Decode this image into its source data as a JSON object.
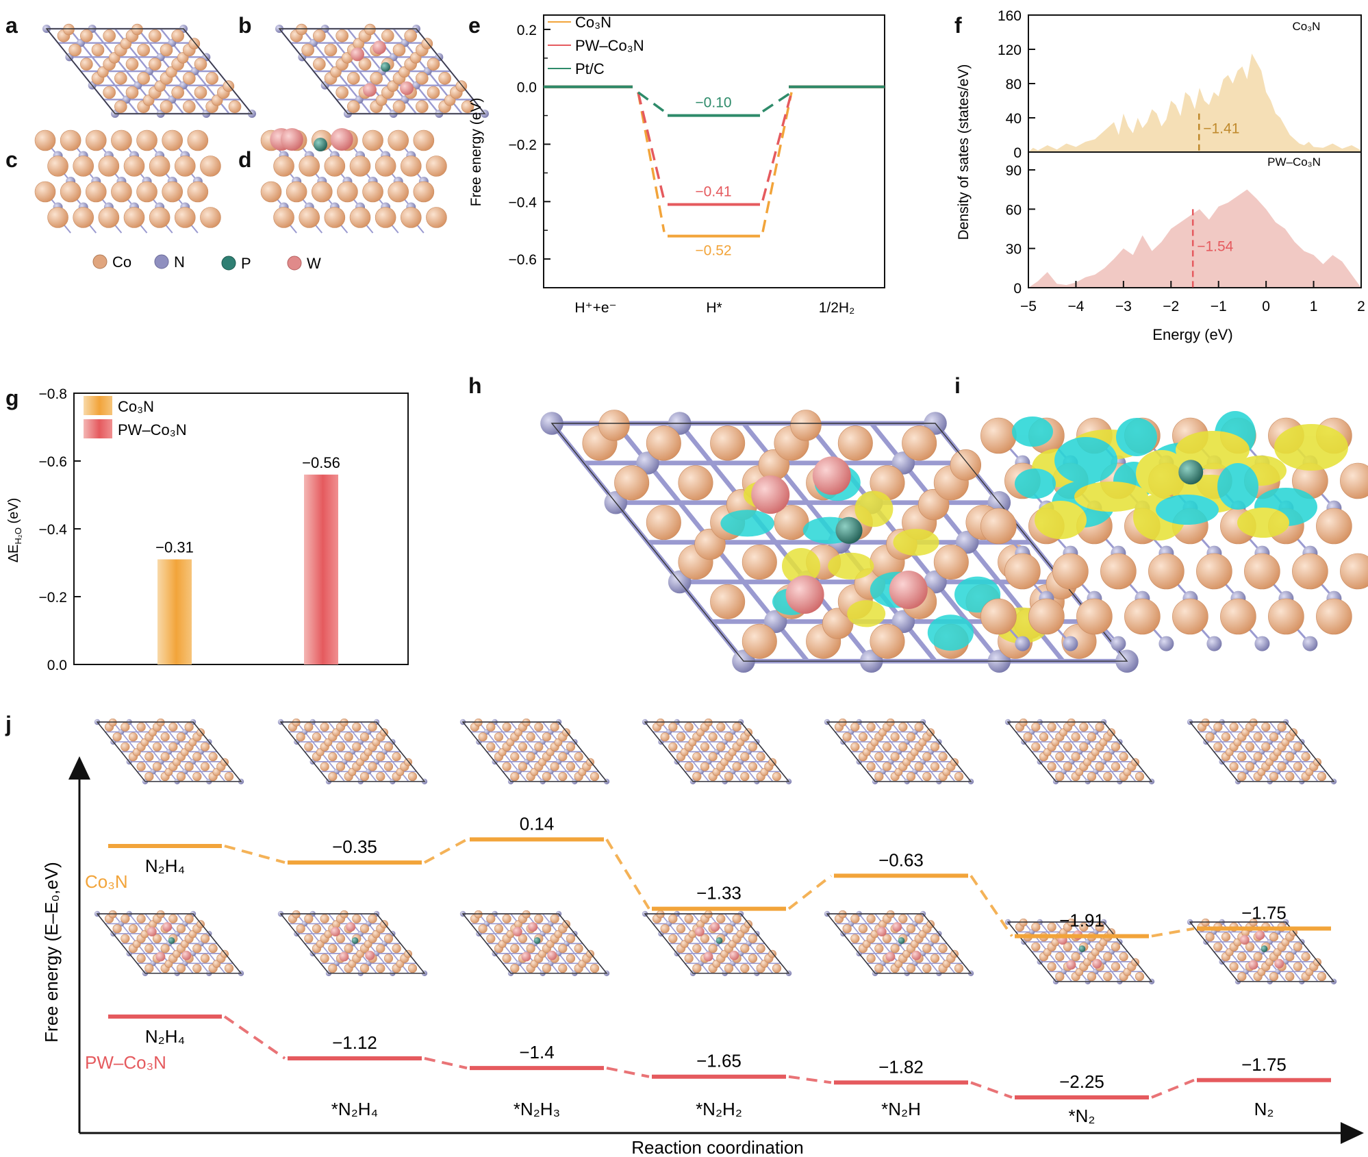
{
  "colors": {
    "co3n": "#f2a43a",
    "pw": "#e55a5e",
    "ptc": "#2e8b6a",
    "co_atom": "#e0a57e",
    "n_atom": "#8f8fbf",
    "p_atom": "#2f7f73",
    "w_atom": "#e08a8a",
    "dos_co": "#f5dfb6",
    "dos_pw": "#f1c9c4",
    "iso_yellow": "#e7e23a",
    "iso_cyan": "#28d6d6"
  },
  "panels": {
    "a": "a",
    "b": "b",
    "c": "c",
    "d": "d",
    "e": "e",
    "f": "f",
    "g": "g",
    "h": "h",
    "i": "i",
    "j": "j"
  },
  "legend_atoms": [
    {
      "label": "Co",
      "atom": "co_atom"
    },
    {
      "label": "N",
      "atom": "n_atom"
    },
    {
      "label": "P",
      "atom": "p_atom"
    },
    {
      "label": "W",
      "atom": "w_atom"
    }
  ],
  "chart_data": [
    {
      "id": "e",
      "type": "line",
      "ylabel": "Free energy (eV)",
      "ylim": [
        -0.7,
        0.25
      ],
      "yticks": [
        {
          "v": 0.2,
          "label": "0.2"
        },
        {
          "v": 0.0,
          "label": "0.0"
        },
        {
          "v": -0.2,
          "label": "−0.2"
        },
        {
          "v": -0.4,
          "label": "−0.4"
        },
        {
          "v": -0.6,
          "label": "−0.6"
        }
      ],
      "categories": [
        "H⁺+e⁻",
        "H*",
        "1/2H₂"
      ],
      "legend": [
        "Co₃N",
        "PW–Co₃N",
        "Pt/C"
      ],
      "series": [
        {
          "name": "Co₃N",
          "color": "co3n",
          "values": [
            0,
            -0.52,
            0
          ],
          "label": "−0.52"
        },
        {
          "name": "PW–Co₃N",
          "color": "pw",
          "values": [
            0,
            -0.41,
            0
          ],
          "label": "−0.41"
        },
        {
          "name": "Pt/C",
          "color": "ptc",
          "values": [
            0,
            -0.1,
            0
          ],
          "label": "−0.10"
        }
      ]
    },
    {
      "id": "f",
      "type": "area",
      "xlabel": "Energy (eV)",
      "ylabel": "Density of sates (states/eV)",
      "xlim": [
        -5,
        2
      ],
      "xticks": [
        {
          "v": -5,
          "label": "−5"
        },
        {
          "v": -4,
          "label": "−4"
        },
        {
          "v": -3,
          "label": "−3"
        },
        {
          "v": -2,
          "label": "−2"
        },
        {
          "v": -1,
          "label": "−1"
        },
        {
          "v": 0,
          "label": "0"
        },
        {
          "v": 1,
          "label": "1"
        },
        {
          "v": 2,
          "label": "2"
        }
      ],
      "subplots": [
        {
          "name": "Co₃N",
          "color": "dos_co",
          "line": "#c08a2c",
          "ylim": [
            0,
            160
          ],
          "yticks": [
            {
              "v": 0,
              "label": "0"
            },
            {
              "v": 40,
              "label": "40"
            },
            {
              "v": 80,
              "label": "80"
            },
            {
              "v": 120,
              "label": "120"
            },
            {
              "v": 160,
              "label": "160"
            }
          ],
          "center": -1.41,
          "center_label": "−1.41",
          "x": [
            -5,
            -4.9,
            -4.8,
            -4.6,
            -4.4,
            -4.2,
            -4.0,
            -3.8,
            -3.6,
            -3.4,
            -3.2,
            -3.1,
            -3.0,
            -2.9,
            -2.8,
            -2.7,
            -2.6,
            -2.5,
            -2.4,
            -2.3,
            -2.2,
            -2.1,
            -2.0,
            -1.9,
            -1.8,
            -1.7,
            -1.6,
            -1.5,
            -1.4,
            -1.3,
            -1.2,
            -1.1,
            -1.0,
            -0.9,
            -0.8,
            -0.7,
            -0.6,
            -0.5,
            -0.4,
            -0.3,
            -0.2,
            -0.1,
            0.0,
            0.1,
            0.2,
            0.3,
            0.4,
            0.5,
            0.6,
            0.7,
            0.8,
            0.9,
            1.0,
            1.2,
            1.4,
            1.6,
            1.8,
            2.0
          ],
          "y": [
            0,
            5,
            2,
            8,
            3,
            10,
            6,
            12,
            15,
            25,
            35,
            20,
            45,
            30,
            22,
            40,
            28,
            35,
            50,
            45,
            30,
            38,
            60,
            55,
            42,
            70,
            65,
            50,
            75,
            60,
            55,
            70,
            65,
            85,
            90,
            80,
            95,
            100,
            85,
            115,
            105,
            95,
            70,
            60,
            45,
            40,
            30,
            20,
            15,
            10,
            8,
            12,
            6,
            5,
            10,
            4,
            8,
            2
          ]
        },
        {
          "name": "PW–Co₃N",
          "color": "dos_pw",
          "line": "#e55a5e",
          "ylim": [
            0,
            90
          ],
          "yticks": [
            {
              "v": 0,
              "label": "0"
            },
            {
              "v": 30,
              "label": "30"
            },
            {
              "v": 60,
              "label": "60"
            },
            {
              "v": 90,
              "label": "90"
            }
          ],
          "center": -1.54,
          "center_label": "−1.54",
          "x": [
            -5,
            -4.8,
            -4.6,
            -4.4,
            -4.2,
            -4.0,
            -3.8,
            -3.6,
            -3.4,
            -3.2,
            -3.0,
            -2.8,
            -2.6,
            -2.4,
            -2.2,
            -2.0,
            -1.8,
            -1.6,
            -1.4,
            -1.2,
            -1.0,
            -0.8,
            -0.6,
            -0.4,
            -0.2,
            0.0,
            0.2,
            0.4,
            0.6,
            0.8,
            1.0,
            1.2,
            1.4,
            1.6,
            1.8,
            2.0
          ],
          "y": [
            0,
            5,
            12,
            3,
            2,
            4,
            8,
            10,
            15,
            22,
            30,
            25,
            40,
            28,
            35,
            45,
            50,
            55,
            60,
            52,
            62,
            65,
            70,
            75,
            68,
            60,
            50,
            45,
            35,
            28,
            25,
            18,
            25,
            20,
            10,
            0
          ]
        }
      ]
    },
    {
      "id": "g",
      "type": "bar",
      "ylabel": "ΔEʜ₂ₒ (eV)",
      "ylim": [
        0,
        -0.8
      ],
      "yticks": [
        {
          "v": 0,
          "label": "0.0"
        },
        {
          "v": -0.2,
          "label": "−0.2"
        },
        {
          "v": -0.4,
          "label": "−0.4"
        },
        {
          "v": -0.6,
          "label": "−0.6"
        },
        {
          "v": -0.8,
          "label": "−0.8"
        }
      ],
      "legend": [
        "Co₃N",
        "PW–Co₃N"
      ],
      "categories": [
        "Co₃N",
        "PW–Co₃N"
      ],
      "values": [
        -0.31,
        -0.56
      ],
      "labels": [
        "−0.31",
        "−0.56"
      ]
    },
    {
      "id": "j",
      "type": "line",
      "xlabel": "Reaction coordination",
      "ylabel": "Free energy (E–E₀,eV)",
      "categories": [
        "N₂H₄",
        "*N₂H₄",
        "*N₂H₃",
        "*N₂H₂",
        "*N₂H",
        "*N₂",
        "N₂"
      ],
      "series": [
        {
          "name": "Co₃N",
          "color": "co3n",
          "values": [
            0,
            -0.35,
            0.14,
            -1.33,
            -0.63,
            -1.91,
            -1.75
          ],
          "labels": [
            "N₂H₄",
            "−0.35",
            "0.14",
            "−1.33",
            "−0.63",
            "−1.91",
            "−1.75"
          ]
        },
        {
          "name": "PW–Co₃N",
          "color": "pw",
          "values": [
            0,
            -1.12,
            -1.4,
            -1.65,
            -1.82,
            -2.25,
            -1.75
          ],
          "labels": [
            "N₂H₄",
            "−1.12",
            "−1.4",
            "−1.65",
            "−1.82",
            "−2.25",
            "−1.75"
          ]
        }
      ]
    }
  ]
}
